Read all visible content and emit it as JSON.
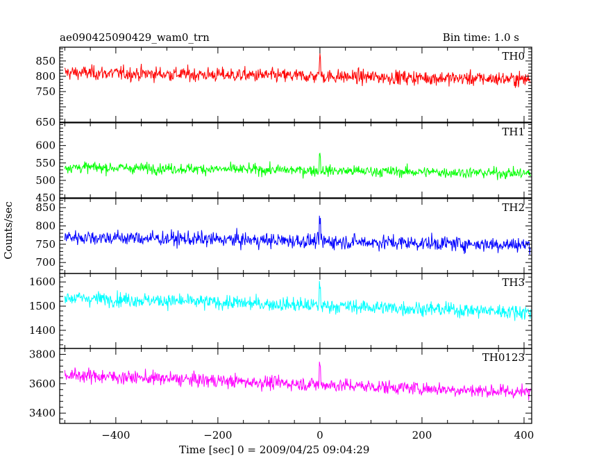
{
  "header": {
    "title": "ae090425090429_wam0_trn",
    "bin_time": "Bin time: 1.0 s"
  },
  "chart_data": {
    "type": "line",
    "xlabel": "Time [sec] 0 = 2009/04/25 09:04:29",
    "ylabel": "Counts/sec",
    "xlim": [
      -510,
      415
    ],
    "x_range": [
      -500,
      413
    ],
    "x_ticks": [
      -400,
      -200,
      0,
      200,
      400
    ],
    "x_tick_labels": [
      "−400",
      "−200",
      "0",
      "200",
      "400"
    ],
    "panels": [
      {
        "name": "TH0",
        "color": "#ff0000",
        "ylim": [
          650,
          895
        ],
        "y_ticks": [
          650,
          700,
          750,
          800,
          850
        ],
        "y_tick_labels": [
          "650",
          "",
          "750",
          "800",
          "850"
        ],
        "mean_start": 812,
        "mean_end": 790,
        "noise": 30,
        "peak_at": 0
      },
      {
        "name": "TH1",
        "color": "#00ff00",
        "ylim": [
          450,
          665
        ],
        "y_ticks": [
          450,
          500,
          550,
          600
        ],
        "y_tick_labels": [
          "450",
          "500",
          "550",
          "600"
        ],
        "mean_start": 538,
        "mean_end": 520,
        "noise": 20,
        "peak_at": 0
      },
      {
        "name": "TH2",
        "color": "#0000ff",
        "ylim": [
          670,
          875
        ],
        "y_ticks": [
          700,
          750,
          800,
          850
        ],
        "y_tick_labels": [
          "700",
          "750",
          "800",
          "850"
        ],
        "mean_start": 770,
        "mean_end": 748,
        "noise": 26,
        "peak_at": 0
      },
      {
        "name": "TH3",
        "color": "#00ffff",
        "ylim": [
          1325,
          1635
        ],
        "y_ticks": [
          1400,
          1500,
          1600
        ],
        "y_tick_labels": [
          "1400",
          "1500",
          "1600"
        ],
        "mean_start": 1535,
        "mean_end": 1475,
        "noise": 38,
        "peak_at": 0
      },
      {
        "name": "TH0123",
        "color": "#ff00ff",
        "ylim": [
          3330,
          3840
        ],
        "y_ticks": [
          3400,
          3600,
          3800
        ],
        "y_tick_labels": [
          "3400",
          "3600",
          "3800"
        ],
        "mean_start": 3660,
        "mean_end": 3540,
        "noise": 60,
        "peak_at": 0
      }
    ]
  }
}
